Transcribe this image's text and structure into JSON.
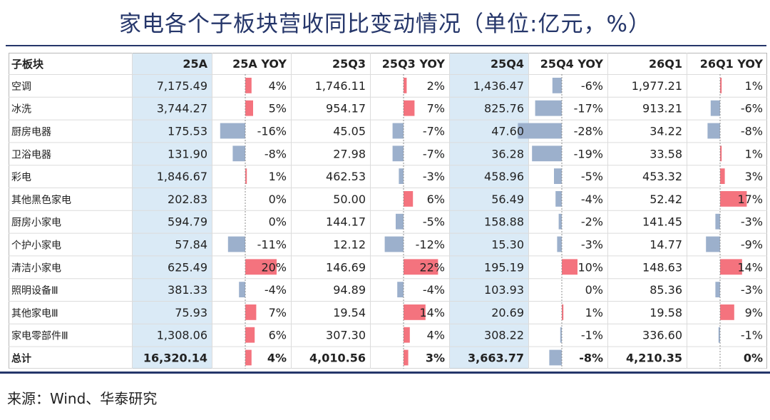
{
  "title": "家电各个子板块营收同比变动情况（单位:亿元，%）",
  "source": "来源：Wind、华泰研究",
  "colors": {
    "title": "#25366a",
    "highlight": "#daeaf6",
    "pos_bar": "#f4737e",
    "neg_bar": "#9cb0cc"
  },
  "chart_data": {
    "type": "table",
    "columns": [
      "子板块",
      "25A",
      "25A YOY",
      "25Q3",
      "25Q3 YOY",
      "25Q4",
      "25Q4 YOY",
      "26Q1",
      "26Q1 YOY"
    ],
    "rows": [
      {
        "name": "空调",
        "v25A": "7,175.49",
        "y25A": 4,
        "v25Q3": "1,746.11",
        "y25Q3": 2,
        "v25Q4": "1,436.47",
        "y25Q4": -6,
        "v26Q1": "1,977.21",
        "y26Q1": 1
      },
      {
        "name": "冰洗",
        "v25A": "3,744.27",
        "y25A": 5,
        "v25Q3": "954.17",
        "y25Q3": 7,
        "v25Q4": "825.76",
        "y25Q4": -17,
        "v26Q1": "913.21",
        "y26Q1": -6
      },
      {
        "name": "厨房电器",
        "v25A": "175.53",
        "y25A": -16,
        "v25Q3": "45.05",
        "y25Q3": -7,
        "v25Q4": "47.60",
        "y25Q4": -28,
        "v26Q1": "34.22",
        "y26Q1": -8
      },
      {
        "name": "卫浴电器",
        "v25A": "131.90",
        "y25A": -8,
        "v25Q3": "27.98",
        "y25Q3": -7,
        "v25Q4": "36.28",
        "y25Q4": -19,
        "v26Q1": "33.58",
        "y26Q1": 1
      },
      {
        "name": "彩电",
        "v25A": "1,846.67",
        "y25A": 1,
        "v25Q3": "462.53",
        "y25Q3": -3,
        "v25Q4": "458.96",
        "y25Q4": -5,
        "v26Q1": "453.32",
        "y26Q1": 3
      },
      {
        "name": "其他黑色家电",
        "v25A": "202.83",
        "y25A": 0,
        "v25Q3": "50.00",
        "y25Q3": 6,
        "v25Q4": "56.49",
        "y25Q4": -4,
        "v26Q1": "52.42",
        "y26Q1": 17
      },
      {
        "name": "厨房小家电",
        "v25A": "594.79",
        "y25A": 0,
        "v25Q3": "144.17",
        "y25Q3": -5,
        "v25Q4": "158.88",
        "y25Q4": -2,
        "v26Q1": "141.45",
        "y26Q1": -3
      },
      {
        "name": "个护小家电",
        "v25A": "57.84",
        "y25A": -11,
        "v25Q3": "12.12",
        "y25Q3": -12,
        "v25Q4": "15.30",
        "y25Q4": -3,
        "v26Q1": "14.77",
        "y26Q1": -9
      },
      {
        "name": "清洁小家电",
        "v25A": "625.49",
        "y25A": 20,
        "v25Q3": "146.69",
        "y25Q3": 22,
        "v25Q4": "195.19",
        "y25Q4": 10,
        "v26Q1": "148.63",
        "y26Q1": 14
      },
      {
        "name": "照明设备Ⅲ",
        "v25A": "381.33",
        "y25A": -4,
        "v25Q3": "94.89",
        "y25Q3": -4,
        "v25Q4": "103.93",
        "y25Q4": 0,
        "v26Q1": "85.36",
        "y26Q1": -3
      },
      {
        "name": "其他家电Ⅲ",
        "v25A": "75.93",
        "y25A": 7,
        "v25Q3": "19.54",
        "y25Q3": 14,
        "v25Q4": "20.69",
        "y25Q4": 1,
        "v26Q1": "19.58",
        "y26Q1": 9
      },
      {
        "name": "家电零部件Ⅲ",
        "v25A": "1,308.06",
        "y25A": 6,
        "v25Q3": "307.30",
        "y25Q3": 4,
        "v25Q4": "308.22",
        "y25Q4": -1,
        "v26Q1": "336.60",
        "y26Q1": -1
      },
      {
        "name": "总计",
        "v25A": "16,320.14",
        "y25A": 4,
        "v25Q3": "4,010.56",
        "y25Q3": 3,
        "v25Q4": "3,663.77",
        "y25Q4": -8,
        "v26Q1": "4,210.35",
        "y26Q1": 0
      }
    ]
  }
}
